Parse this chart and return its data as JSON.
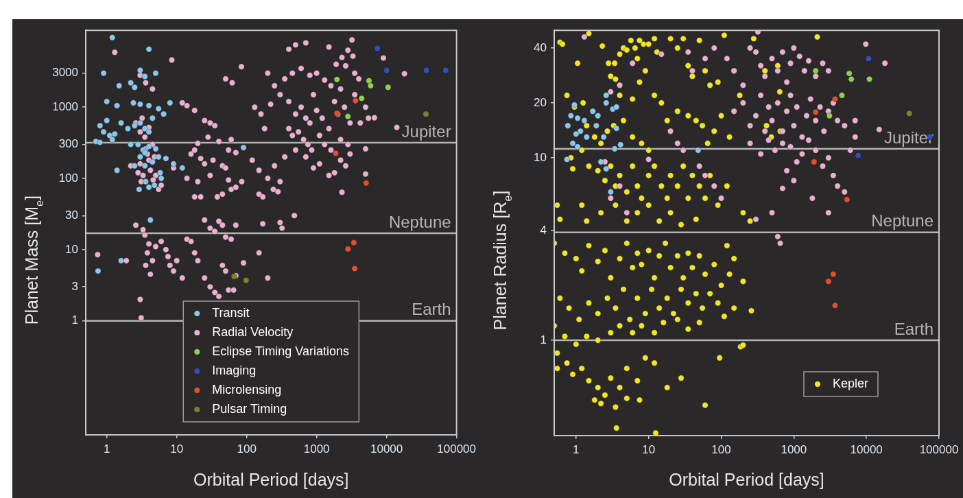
{
  "chart_data": [
    {
      "type": "scatter",
      "xlabel": "Orbital Period [days]",
      "ylabel": "Planet Mass [M$_{e}$]",
      "log": "xy",
      "grid": false,
      "legend": "bottom",
      "marker": "circle",
      "xlim": [
        0.5,
        100000
      ],
      "ylim": [
        0.025,
        12000
      ],
      "xticks": [
        1,
        10,
        100,
        1000,
        10000,
        100000
      ],
      "yticks": [
        1,
        3,
        10,
        30,
        100,
        300,
        1000,
        3000
      ],
      "ref_lines": [
        {
          "axis": "y",
          "value": 318,
          "label": "Jupiter",
          "color": "#b4b4b4"
        },
        {
          "axis": "y",
          "value": 17,
          "label": "Neptune",
          "color": "#b4b4b4"
        },
        {
          "axis": "y",
          "value": 1,
          "label": "Earth",
          "color": "#b4b4b4"
        }
      ],
      "series": [
        {
          "name": "Transit",
          "color": "#88c8ec",
          "x": [
            1.2,
            4,
            0.9,
            3,
            3.5,
            1.5,
            2.2,
            5,
            2.5,
            1,
            1.4,
            2.4,
            3,
            4,
            5.5,
            8,
            6.5,
            4.5,
            0.8,
            0.9,
            1.1,
            1.3,
            1.6,
            2,
            2.5,
            3,
            3.5,
            4,
            1,
            0.7,
            0.8,
            1.2,
            2.8,
            3.3,
            4,
            5,
            3,
            2.5,
            3.5,
            4.5,
            5.5,
            7,
            1.4,
            3.6,
            4.8,
            2.9,
            4,
            6,
            9,
            12,
            3.5,
            2.2,
            5.8,
            4.2,
            1.6,
            0.75,
            90
          ],
          "values": [
            9500,
            6500,
            3000,
            3300,
            2700,
            2000,
            2200,
            3000,
            1900,
            1200,
            1050,
            1150,
            1100,
            1050,
            950,
            1150,
            800,
            700,
            550,
            450,
            400,
            420,
            600,
            500,
            550,
            600,
            500,
            450,
            650,
            330,
            320,
            350,
            300,
            250,
            280,
            260,
            200,
            150,
            150,
            170,
            200,
            190,
            130,
            90,
            80,
            70,
            75,
            100,
            160,
            140,
            230,
            300,
            120,
            26,
            7,
            5,
            270
          ]
        },
        {
          "name": "Radial Velocity",
          "color": "#eab0d2",
          "x": [
            3,
            3.5,
            4,
            2.6,
            3.2,
            4.5,
            3.8,
            3,
            2.8,
            3.3,
            4.2,
            5,
            3.1,
            4.6,
            5.5,
            6,
            4,
            2.2,
            3.6,
            4.8,
            3.6,
            1.3,
            8.5,
            4.5,
            3,
            12,
            14,
            18,
            25,
            30,
            35,
            28,
            20,
            40,
            60,
            55,
            70,
            16,
            22,
            18,
            25,
            33,
            45,
            50,
            9,
            14,
            20,
            30,
            55,
            60,
            45,
            70,
            85,
            38,
            18,
            22,
            84,
            50,
            62,
            200,
            250,
            300,
            400,
            500,
            600,
            700,
            800,
            900,
            1000,
            1200,
            1500,
            1800,
            2000,
            2500,
            3000,
            3500,
            400,
            450,
            550,
            650,
            750,
            850,
            1100,
            1300,
            1600,
            2200,
            2800,
            180,
            160,
            130,
            220,
            350,
            450,
            600,
            800,
            1000,
            1300,
            1600,
            2200,
            2600,
            3500,
            4000,
            4200,
            5000,
            5500,
            3300,
            2800,
            1500,
            700,
            500,
            400,
            1900,
            2300,
            3200,
            5000,
            5000,
            2300,
            18000,
            9000,
            14000,
            6700,
            120,
            150,
            200,
            250,
            300,
            350,
            500,
            700,
            900,
            1100,
            1500,
            1800,
            2200,
            2600,
            3000,
            150,
            170,
            240,
            280,
            480,
            3,
            3.1,
            2.6,
            3.3,
            3.5,
            4,
            3.8,
            4.5,
            3.6,
            4.2,
            5,
            6,
            7,
            7.5,
            8,
            9,
            10,
            12,
            14,
            16,
            18,
            20,
            25,
            30,
            35,
            40,
            45,
            50,
            55,
            65,
            70,
            25,
            30,
            35,
            40,
            45,
            60,
            70,
            50,
            90,
            150,
            200,
            170,
            300,
            320,
            1.9,
            0.74
          ],
          "values": [
            450,
            380,
            520,
            600,
            700,
            300,
            220,
            160,
            120,
            110,
            130,
            110,
            90,
            95,
            70,
            80,
            180,
            150,
            260,
            200,
            2200,
            5900,
            4600,
            1800,
            2800,
            1150,
            1050,
            900,
            650,
            600,
            550,
            380,
            310,
            330,
            350,
            250,
            230,
            220,
            190,
            250,
            160,
            180,
            150,
            140,
            140,
            100,
            90,
            110,
            95,
            70,
            60,
            75,
            90,
            55,
            55,
            55,
            3700,
            2500,
            2200,
            3000,
            2000,
            1500,
            1200,
            800,
            1000,
            700,
            600,
            1500,
            900,
            700,
            500,
            1200,
            800,
            1000,
            600,
            1500,
            500,
            400,
            450,
            350,
            300,
            250,
            400,
            300,
            250,
            350,
            300,
            500,
            800,
            1000,
            1100,
            2500,
            3000,
            3500,
            2800,
            3000,
            2400,
            2000,
            1800,
            3800,
            3000,
            2500,
            600,
            1000,
            700,
            5200,
            6300,
            7000,
            8000,
            7500,
            6500,
            4000,
            5000,
            8800,
            260,
            115,
            64,
            2950,
            4900,
            520,
            710,
            180,
            130,
            100,
            150,
            90,
            200,
            250,
            200,
            140,
            160,
            110,
            120,
            180,
            150,
            220,
            60,
            55,
            70,
            65,
            30,
            2,
            1.1,
            22,
            19,
            16,
            12,
            9,
            7,
            6,
            4.5,
            11,
            13,
            10,
            8,
            6,
            5,
            7,
            4,
            14,
            13,
            9,
            7,
            4,
            3,
            2.5,
            2.2,
            6,
            5,
            2.7,
            2.7,
            4.3,
            26,
            20,
            18,
            25,
            22,
            14,
            22,
            15,
            6.5,
            9,
            4,
            23,
            24,
            20,
            7,
            8.5
          ]
        },
        {
          "name": "Eclipse Timing Variations",
          "color": "#8ed24c",
          "x": [
            1950,
            5600,
            5900,
            10500,
            4400,
            2800
          ],
          "values": [
            2450,
            2350,
            2000,
            1900,
            1330,
            740
          ]
        },
        {
          "name": "Imaging",
          "color": "#2f4fc0",
          "x": [
            7400,
            10000,
            37000,
            70000
          ],
          "values": [
            6700,
            3300,
            3300,
            3300
          ]
        },
        {
          "name": "Microlensing",
          "color": "#e0502c",
          "x": [
            3600,
            1950,
            1870,
            5100,
            3400,
            2800,
            3500
          ],
          "values": [
            1230,
            820,
            225,
            86,
            12.5,
            10.2,
            5.4
          ]
        },
        {
          "name": "Pulsar Timing",
          "color": "#80802a",
          "x": [
            36500,
            66,
            98
          ],
          "values": [
            800,
            4.2,
            3.7
          ]
        }
      ]
    },
    {
      "type": "scatter",
      "xlabel": "Orbital Period [days]",
      "ylabel": "Planet Radius [R$_{e}$]",
      "log": "xy",
      "grid": false,
      "legend": "bottom right",
      "marker": "circle",
      "xlim": [
        0.5,
        100000
      ],
      "ylim": [
        0.3,
        50
      ],
      "xticks": [
        1,
        10,
        100,
        1000,
        10000,
        100000
      ],
      "yticks": [
        1,
        4,
        10,
        20,
        40
      ],
      "ref_lines": [
        {
          "axis": "y",
          "value": 11.2,
          "label": "Jupiter",
          "color": "#b4b4b4"
        },
        {
          "axis": "y",
          "value": 3.9,
          "label": "Neptune",
          "color": "#b4b4b4"
        },
        {
          "axis": "y",
          "value": 1,
          "label": "Earth",
          "color": "#b4b4b4"
        }
      ],
      "series": [
        {
          "color": "#88c8ec",
          "x": [
            0.77,
            0.85,
            0.95,
            1.05,
            1.15,
            1.3,
            1.7,
            2,
            2.6,
            3.2,
            3.6,
            0.9,
            1.05,
            2.6,
            2.2,
            2.6,
            3,
            48,
            0.75,
            1.4,
            1.9,
            3.6,
            3.4,
            4.1,
            1.0,
            2.4
          ],
          "values": [
            15,
            17,
            19.5,
            16.5,
            14,
            16,
            18,
            17,
            20,
            18.5,
            19,
            12,
            11.5,
            22,
            9.5,
            8.7,
            6.5,
            11,
            9.8,
            13,
            15,
            14.5,
            11.2,
            11.8,
            13.5,
            13
          ]
        },
        {
          "color": "#eab0d2",
          "x": [
            120,
            150,
            200,
            250,
            300,
            350,
            400,
            500,
            600,
            700,
            800,
            900,
            1000,
            1200,
            1400,
            1600,
            2000,
            2500,
            3000,
            150,
            200,
            250,
            300,
            350,
            400,
            450,
            500,
            600,
            700,
            800,
            900,
            1000,
            1100,
            1300,
            1500,
            1700,
            2000,
            2300,
            2600,
            3000,
            3500,
            4000,
            5000,
            250,
            350,
            450,
            550,
            700,
            900,
            1100,
            1300,
            1600,
            2000,
            2500,
            3000,
            3500,
            4000,
            5000,
            800,
            1000,
            700,
            1800,
            3000,
            7000,
            6000,
            18000,
            9800,
            15000,
            7000,
            4,
            3,
            6,
            15,
            35,
            40,
            60,
            80,
            20,
            25,
            30,
            50,
            60,
            80,
            100,
            3,
            4,
            5,
            2.5,
            10,
            300,
            500,
            600,
            650,
            1.3,
            320
          ],
          "values": [
            35,
            30,
            25,
            40,
            38,
            32,
            28,
            35,
            30,
            38,
            26,
            33,
            40,
            36,
            30,
            34,
            28,
            33,
            30,
            18,
            20,
            15,
            17,
            22,
            14,
            19,
            16,
            20,
            14,
            18,
            22,
            15,
            19,
            13,
            17,
            21,
            16,
            19,
            14,
            18,
            20,
            16,
            15,
            12,
            10.5,
            12.5,
            11,
            12,
            11.5,
            9.5,
            10.5,
            12.5,
            11,
            9,
            10,
            8,
            7,
            6.5,
            8.5,
            7.5,
            6.8,
            6,
            5,
            13,
            11,
            33,
            42,
            14.3,
            16,
            25,
            23,
            33,
            37,
            38,
            30,
            35,
            40,
            14,
            12,
            11,
            9,
            8,
            7,
            6,
            6,
            7,
            5,
            9.5,
            9.8,
            4.6,
            5,
            3.7,
            3.4,
            46,
            49
          ]
        },
        {
          "color": "#8ed24c",
          "x": [
            2000,
            5800,
            6200,
            11000,
            4600,
            3100
          ],
          "values": [
            30,
            29,
            27,
            27,
            22,
            17
          ]
        },
        {
          "color": "#2f4fc0",
          "x": [
            10700,
            7700,
            75000
          ],
          "values": [
            35,
            10.3,
            13
          ]
        },
        {
          "color": "#e0502c",
          "x": [
            3700,
            2000,
            1900,
            5400,
            3500,
            3000,
            3700
          ],
          "values": [
            21,
            17.8,
            9.5,
            5.9,
            2.3,
            2.1,
            1.55
          ]
        },
        {
          "color": "#80802a",
          "x": [
            39000
          ],
          "values": [
            17.5
          ]
        },
        {
          "name": "Kepler",
          "color": "#f2e622",
          "x": [
            0.6,
            0.65,
            1.05,
            0.75,
            0.95,
            1.25,
            1.5,
            2.3,
            2.8,
            3,
            3.4,
            4,
            4.5,
            5,
            5.7,
            6.5,
            7.5,
            8.5,
            7,
            9,
            10,
            12,
            13,
            20,
            25,
            30,
            35,
            40,
            50,
            60,
            70,
            90,
            110,
            150,
            180,
            280,
            400,
            420,
            490,
            3.5,
            4,
            6,
            7.5,
            12,
            15,
            18,
            25,
            35,
            45,
            55,
            65,
            80,
            100,
            130,
            1.4,
            1.8,
            2.2,
            2.7,
            3.3,
            4.5,
            6,
            8,
            10,
            1.2,
            0.9,
            0.85,
            600,
            640,
            650,
            2100,
            1.5,
            2,
            2.5,
            3,
            3.5,
            4,
            5,
            6,
            7,
            8,
            10,
            12,
            15,
            18,
            20,
            25,
            30,
            35,
            40,
            50,
            60,
            70,
            90,
            120,
            200,
            250,
            0.55,
            0.6,
            1.2,
            1.4,
            2.2,
            3.5,
            5,
            7,
            10,
            14,
            20,
            28,
            45,
            0.5,
            0.7,
            1,
            1.2,
            1.5,
            2,
            2.5,
            3,
            4,
            5,
            6,
            7,
            8,
            10,
            12,
            14,
            17,
            20,
            25,
            30,
            35,
            40,
            50,
            60,
            80,
            100,
            90,
            70,
            55,
            45,
            35,
            28,
            22,
            18,
            14,
            11,
            9,
            7,
            5.5,
            4.5,
            3.5,
            2.7,
            2,
            1.5,
            1.1,
            0.8,
            0.6,
            0.5,
            0.7,
            1,
            1.4,
            2,
            3,
            4,
            6,
            8,
            12,
            16,
            25,
            35,
            50,
            120,
            150,
            130,
            200,
            0.55,
            0.75,
            0.9,
            1.2,
            1.5,
            2,
            2.5,
            3,
            4,
            5,
            7,
            9,
            12,
            1.8,
            2.2,
            3.5,
            5,
            7.5,
            0.55,
            3.6,
            12.5,
            60,
            95,
            185,
            200,
            260,
            150,
            110,
            18,
            28
          ],
          "values": [
            43,
            42,
            33,
            22,
            19,
            20,
            48,
            41,
            33,
            28,
            33,
            37,
            40,
            39,
            44,
            40,
            44,
            42,
            35,
            30,
            42,
            45,
            38,
            45,
            40,
            45,
            32,
            28,
            44,
            30,
            25,
            26,
            47,
            30,
            22,
            45,
            30,
            15,
            13,
            27,
            22,
            21,
            26,
            22,
            20,
            16,
            18,
            17,
            16,
            15,
            12,
            14,
            17,
            13,
            15,
            13,
            12,
            14,
            15,
            16,
            13,
            12,
            11,
            11,
            8.7,
            10,
            32,
            23,
            14,
            46,
            9,
            8.5,
            7.5,
            9,
            7,
            8,
            6.5,
            9,
            7,
            6,
            8,
            9,
            7,
            6,
            8,
            7,
            9,
            6,
            8,
            7,
            6,
            8,
            5.5,
            7,
            5,
            4.5,
            5.5,
            4.6,
            5.5,
            4.5,
            5,
            5.5,
            4.5,
            5,
            5.5,
            4.5,
            5,
            4.3,
            4.6,
            3.4,
            3,
            2.8,
            2.4,
            3.3,
            2.7,
            3.1,
            2.2,
            2.8,
            3.4,
            2.5,
            3,
            2.6,
            3.1,
            2.2,
            2.9,
            3.4,
            2.5,
            2.9,
            2.2,
            3,
            2.5,
            2.9,
            2.3,
            2.6,
            2,
            1.6,
            1.8,
            1.5,
            1.8,
            1.6,
            1.9,
            1.4,
            1.7,
            1.5,
            1.9,
            1.4,
            1.7,
            1.3,
            1.9,
            1.5,
            1.7,
            1.4,
            1.6,
            1.3,
            1.5,
            1.7,
            1.2,
            1.05,
            0.95,
            1.05,
            1,
            1.1,
            1.2,
            1.1,
            1.2,
            1.1,
            1.25,
            1.3,
            1.15,
            1.25,
            3.3,
            2.8,
            2.3,
            2.1,
            0.85,
            0.75,
            0.65,
            0.7,
            0.6,
            0.55,
            0.5,
            0.62,
            0.55,
            0.7,
            0.6,
            0.8,
            0.75,
            0.47,
            0.45,
            0.43,
            0.48,
            0.47,
            0.7,
            0.33,
            0.31,
            0.44,
            0.8,
            0.92,
            0.94,
            1.45,
            1.5,
            1.35,
            0.55,
            0.62
          ]
        }
      ]
    }
  ]
}
